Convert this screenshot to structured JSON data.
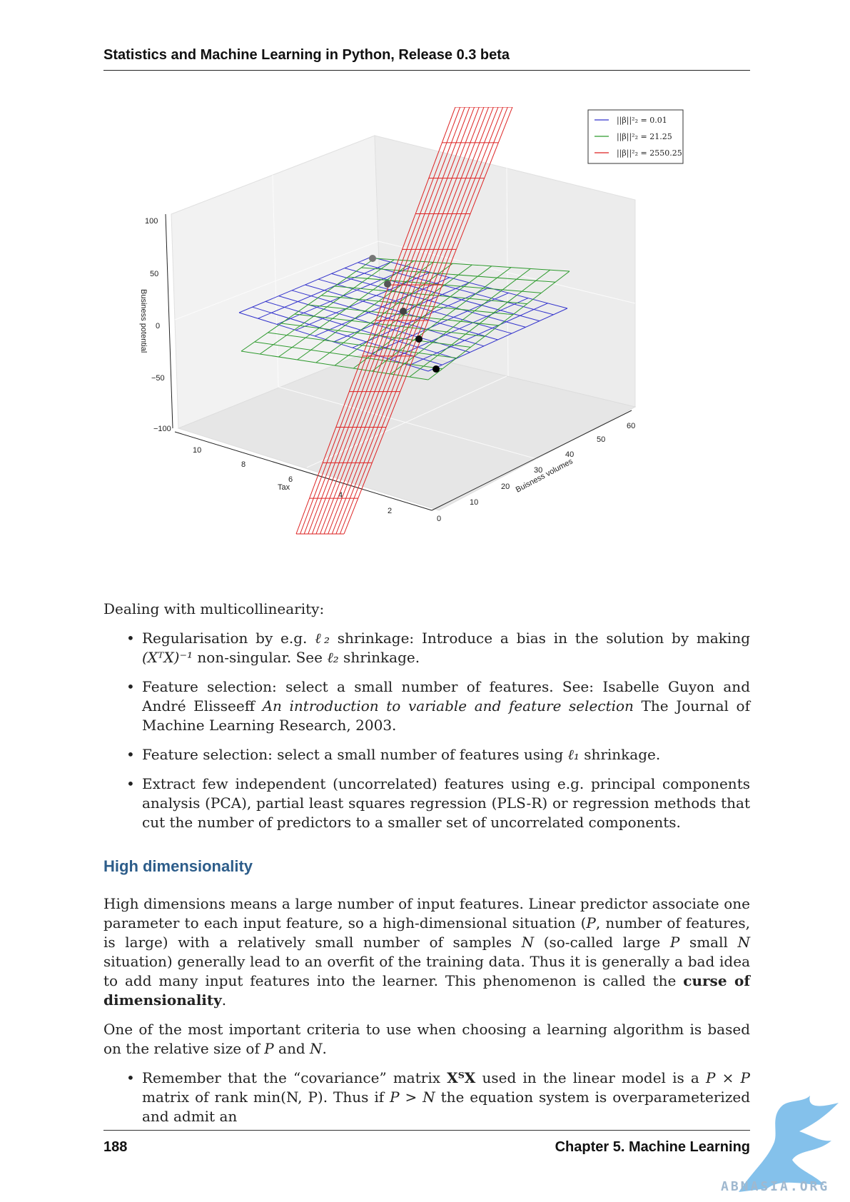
{
  "header": {
    "title": "Statistics and Machine Learning in Python, Release 0.3 beta"
  },
  "figure": {
    "legend": [
      {
        "label": "||β||²₂ = 0.01",
        "color": "#3333cc"
      },
      {
        "label": "||β||²₂ = 21.25",
        "color": "#2e9a2e"
      },
      {
        "label": "||β||²₂ = 2550.25",
        "color": "#dd2222"
      }
    ],
    "zlabel": "Business potential",
    "xlabel": "Tax",
    "ylabel": "Buisness volumes",
    "zticks": [
      "100",
      "50",
      "0",
      "−50",
      "−100"
    ],
    "xticks": [
      "10",
      "8",
      "6",
      "4",
      "2"
    ],
    "yticks": [
      "0",
      "10",
      "20",
      "30",
      "40",
      "50",
      "60"
    ]
  },
  "intro": "Dealing with multicollinearity:",
  "bullets1": [
    {
      "a": "Regularisation by e.g. ",
      "b": "ℓ₂",
      "c": " shrinkage: Introduce a bias in the solution by making ",
      "d": "(XᵀX)⁻¹",
      "e": " non-singular. See ",
      "f": "ℓ₂",
      "g": " shrinkage."
    },
    {
      "a": "Feature selection: select a small number of features. See: Isabelle Guyon and André Elisseeff ",
      "b": "An introduction to variable and feature selection",
      "c": " The Journal of Machine Learning Research, 2003."
    },
    {
      "a": "Feature selection: select a small number of features using ",
      "b": "ℓ₁",
      "c": " shrinkage."
    },
    {
      "a": "Extract few independent (uncorrelated) features using e.g. principal components analysis (PCA), partial least squares regression (PLS-R) or regression methods that cut the number of predictors to a smaller set of uncorrelated components."
    }
  ],
  "section_title": "High dimensionality",
  "para1": {
    "a": "High dimensions means a large number of input features. Linear predictor associate one parameter to each input feature, so a high-dimensional situation (",
    "b": "P",
    "c": ", number of features, is large) with a relatively small number of samples ",
    "d": "N",
    "e": " (so-called large ",
    "f": "P",
    "g": " small ",
    "h": "N",
    "i": " situation) generally lead to an overfit of the training data. Thus it is generally a bad idea to add many input features into the learner. This phenomenon is called the ",
    "j": "curse of dimensionality",
    "k": "."
  },
  "para2": {
    "a": "One of the most important criteria to use when choosing a learning algorithm is based on the relative size of ",
    "b": "P",
    "c": " and ",
    "d": "N",
    "e": "."
  },
  "bullet2": {
    "a": "Remember that the “covariance” matrix ",
    "b": "XᵀX",
    "c": " used in the linear model is a ",
    "d": "P × P",
    "e": " matrix of rank ",
    "f": "min(N, P)",
    "g": ". Thus if ",
    "h": "P > N",
    "i": " the equation system is overparameterized and admit an"
  },
  "footer": {
    "page": "188",
    "chapter": "Chapter 5. Machine Learning"
  },
  "watermark": {
    "text": "ABNASIA.ORG"
  }
}
